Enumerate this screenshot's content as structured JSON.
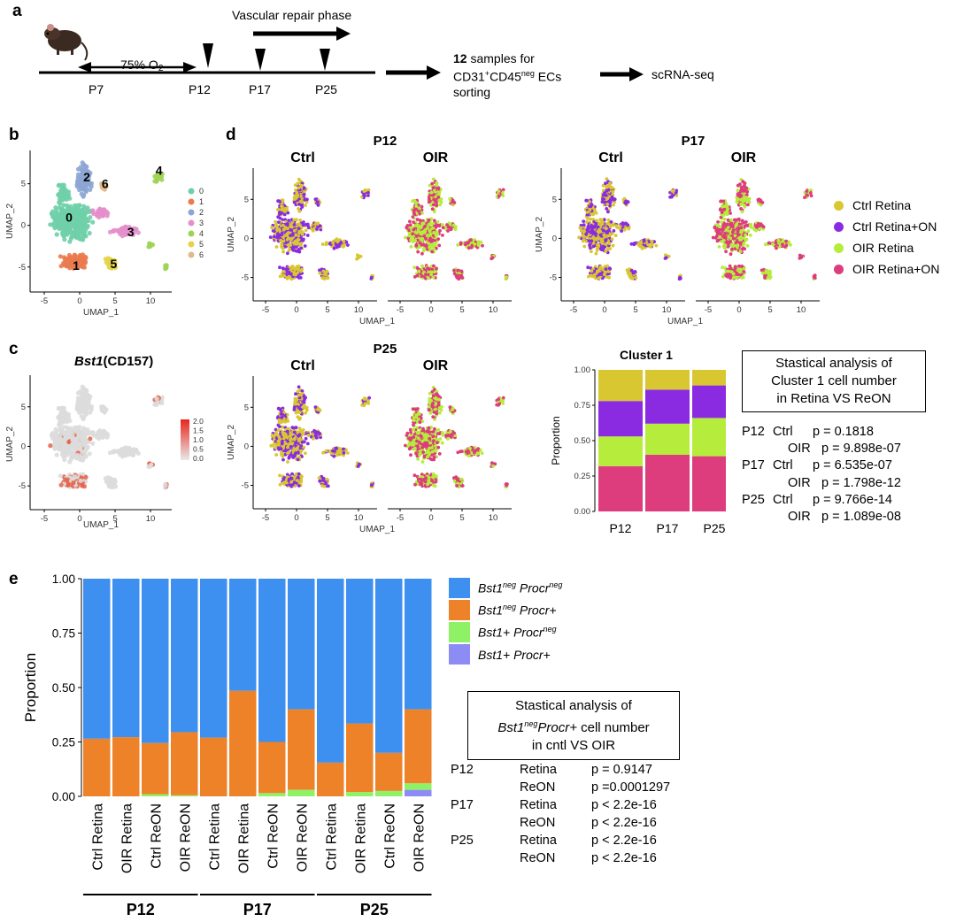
{
  "panel_a": {
    "label": "a",
    "oxygen": "75% O",
    "oxygen_sub": "2",
    "timepoints": [
      "P7",
      "P12",
      "P17",
      "P25"
    ],
    "phase": "Vascular repair phase",
    "samples_num": "12",
    "samples_text": " samples for",
    "sort_line_a": "CD31",
    "sort_sup_plus": "+",
    "sort_line_b": "CD45",
    "sort_sup_neg": "neg",
    "sort_line_c": " ECs",
    "sort_line2": "sorting",
    "seq": "scRNA-seq"
  },
  "panel_b": {
    "label": "b",
    "xlabel": "UMAP_1",
    "ylabel": "UMAP_2",
    "clusters": [
      "0",
      "1",
      "2",
      "3",
      "4",
      "5",
      "6"
    ],
    "cluster_colors": [
      "#6fcfa8",
      "#ea7b4f",
      "#8da6d4",
      "#e38fcb",
      "#9ed455",
      "#e4d34a",
      "#e2b98a"
    ],
    "xticks": [
      "-5",
      "0",
      "5",
      "10"
    ],
    "yticks": [
      "5",
      "0",
      "-5"
    ]
  },
  "panel_c": {
    "label": "c",
    "title_gene": "Bst1",
    "title_rest": "(CD157)",
    "xlabel": "UMAP_1",
    "ylabel": "UMAP_2",
    "scale_ticks": [
      "2.0",
      "1.5",
      "1.0",
      "0.5",
      "0.0"
    ],
    "xticks": [
      "-5",
      "0",
      "5",
      "10"
    ],
    "yticks": [
      "5",
      "0",
      "-5"
    ]
  },
  "panel_d": {
    "label": "d",
    "groups": [
      {
        "time": "P12",
        "left": "Ctrl",
        "right": "OIR"
      },
      {
        "time": "P17",
        "left": "Ctrl",
        "right": "OIR"
      },
      {
        "time": "P25",
        "left": "Ctrl",
        "right": "OIR"
      }
    ],
    "xlabel": "UMAP_1",
    "ylabel": "UMAP_2",
    "xticks": [
      "-5",
      "0",
      "5",
      "10"
    ],
    "yticks": [
      "5",
      "0",
      "-5"
    ],
    "legend": [
      {
        "label": "Ctrl Retina",
        "color": "#d8c730"
      },
      {
        "label": "Ctrl Retina+ON",
        "color": "#8a2be2"
      },
      {
        "label": "OIR Retina",
        "color": "#b6ed3c"
      },
      {
        "label": "OIR Retina+ON",
        "color": "#dd3d7c"
      }
    ]
  },
  "cluster1_stats": {
    "title_lines": [
      "Stastical analysis of",
      "Cluster 1 cell number",
      "in Retina VS ReON"
    ],
    "rows": [
      {
        "time": "P12",
        "group": "Ctrl",
        "p": "p = 0.1818"
      },
      {
        "time": "",
        "group": "OIR",
        "p": "p = 9.898e-07"
      },
      {
        "time": "P17",
        "group": "Ctrl",
        "p": "p = 6.535e-07"
      },
      {
        "time": "",
        "group": "OIR",
        "p": "p = 1.798e-12"
      },
      {
        "time": "P25",
        "group": "Ctrl",
        "p": "p = 9.766e-14"
      },
      {
        "time": "",
        "group": "OIR",
        "p": "p = 1.089e-08"
      }
    ]
  },
  "panel_e": {
    "label": "e",
    "legend": [
      {
        "gene1": "Bst1",
        "mark1": "neg",
        "gene2": " Procr",
        "mark2": "neg",
        "color": "#3d8ff0"
      },
      {
        "gene1": "Bst1",
        "mark1": "neg",
        "gene2": " Procr+",
        "mark2": "",
        "color": "#ee8228"
      },
      {
        "gene1": "Bst1+",
        "mark1": "",
        "gene2": " Procr",
        "mark2": "neg",
        "color": "#8ff266"
      },
      {
        "gene1": "Bst1+",
        "mark1": "",
        "gene2": " Procr+",
        "mark2": "",
        "color": "#8d8cf5"
      }
    ],
    "stat_title1": "Stastical analysis of",
    "stat_title2_gene": "Bst1",
    "stat_title2_sup": "neg",
    "stat_title2_rest": "Procr+",
    "stat_title2_tail": " cell number",
    "stat_title3": "in cntl VS OIR",
    "stats": [
      {
        "time": "P12",
        "tissue": "Retina",
        "p": "p = 0.9147"
      },
      {
        "time": "",
        "tissue": "ReON",
        "p": "p =0.0001297"
      },
      {
        "time": "P17",
        "tissue": "Retina",
        "p": "p <  2.2e-16"
      },
      {
        "time": "",
        "tissue": "ReON",
        "p": "p <  2.2e-16"
      },
      {
        "time": "P25",
        "tissue": "Retina",
        "p": "p <  2.2e-16"
      },
      {
        "time": "",
        "tissue": "ReON",
        "p": "p <  2.2e-16"
      }
    ],
    "group_labels": [
      "P12",
      "P17",
      "P25"
    ]
  },
  "chart_data": [
    {
      "type": "bar",
      "id": "cluster1",
      "title": "Cluster 1",
      "xlabel": "",
      "ylabel": "Proportion",
      "ylim": [
        0,
        1
      ],
      "yticks": [
        "0.00",
        "0.25",
        "0.50",
        "0.75",
        "1.00"
      ],
      "categories": [
        "P12",
        "P17",
        "P25"
      ],
      "stacked": true,
      "series": [
        {
          "name": "OIR Retina+ON",
          "color": "#dd3d7c",
          "values": [
            0.32,
            0.4,
            0.39
          ]
        },
        {
          "name": "OIR Retina",
          "color": "#b6ed3c",
          "values": [
            0.21,
            0.22,
            0.27
          ]
        },
        {
          "name": "Ctrl Retina+ON",
          "color": "#8a2be2",
          "values": [
            0.25,
            0.24,
            0.23
          ]
        },
        {
          "name": "Ctrl Retina",
          "color": "#d8c730",
          "values": [
            0.22,
            0.14,
            0.11
          ]
        }
      ]
    },
    {
      "type": "bar",
      "id": "bst1procr",
      "title": "",
      "xlabel": "",
      "ylabel": "Proportion",
      "ylim": [
        0,
        1
      ],
      "yticks": [
        "0.00",
        "0.25",
        "0.50",
        "0.75",
        "1.00"
      ],
      "categories": [
        "Ctrl Retina",
        "OIR Retina",
        "Ctrl ReON",
        "OIR ReON",
        "Ctrl Retina",
        "OIR Retina",
        "Ctrl ReON",
        "OIR ReON",
        "Ctrl Retina",
        "OIR Retina",
        "Ctrl ReON",
        "OIR ReON"
      ],
      "stacked": true,
      "series": [
        {
          "name": "Bst1+ Procr+",
          "color": "#8d8cf5",
          "values": [
            0.0,
            0.0,
            0.0,
            0.0,
            0.0,
            0.0,
            0.0,
            0.0,
            0.0,
            0.0,
            0.0,
            0.03
          ]
        },
        {
          "name": "Bst1+ Procrneg",
          "color": "#8ff266",
          "values": [
            0.0,
            0.0,
            0.01,
            0.005,
            0.0,
            0.0,
            0.015,
            0.03,
            0.0,
            0.02,
            0.025,
            0.03
          ]
        },
        {
          "name": "Bst1neg Procr+",
          "color": "#ee8228",
          "values": [
            0.265,
            0.272,
            0.235,
            0.29,
            0.27,
            0.485,
            0.235,
            0.37,
            0.155,
            0.315,
            0.175,
            0.34
          ]
        },
        {
          "name": "Bst1neg Procrneg",
          "color": "#3d8ff0",
          "values": [
            0.735,
            0.728,
            0.755,
            0.705,
            0.73,
            0.515,
            0.75,
            0.6,
            0.845,
            0.665,
            0.8,
            0.6
          ]
        }
      ]
    }
  ]
}
